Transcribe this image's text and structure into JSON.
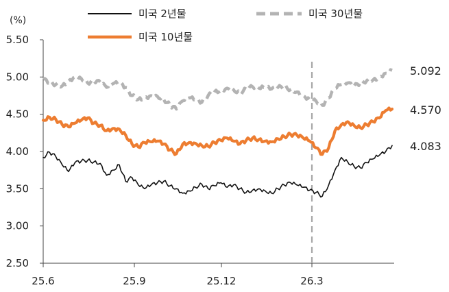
{
  "chart_data": {
    "type": "line",
    "unit_label": "(%)",
    "title": "",
    "xlabel": "",
    "ylabel": "",
    "ylim": [
      2.5,
      5.5
    ],
    "y_ticks": [
      "2.50",
      "3.00",
      "3.50",
      "4.00",
      "4.50",
      "5.00",
      "5.50"
    ],
    "x_ticks": [
      "25.6",
      "25.9",
      "25.12",
      "26.3"
    ],
    "legend_placement": "top",
    "grid": false,
    "reference_line": {
      "x_label": "26.3",
      "style": "dashed",
      "color": "#a6a6a6"
    },
    "series": [
      {
        "name": "미국 2년물",
        "color": "#111111",
        "style": "solid",
        "end_label": "4.083",
        "values": [
          3.92,
          3.99,
          3.93,
          3.82,
          3.73,
          3.85,
          3.87,
          3.88,
          3.86,
          3.84,
          3.68,
          3.75,
          3.82,
          3.6,
          3.65,
          3.55,
          3.5,
          3.55,
          3.58,
          3.6,
          3.54,
          3.5,
          3.44,
          3.47,
          3.52,
          3.56,
          3.5,
          3.54,
          3.58,
          3.52,
          3.55,
          3.5,
          3.45,
          3.48,
          3.5,
          3.47,
          3.44,
          3.5,
          3.55,
          3.58,
          3.55,
          3.52,
          3.48,
          3.45,
          3.4,
          3.55,
          3.75,
          3.92,
          3.86,
          3.8,
          3.78,
          3.85,
          3.9,
          3.95,
          4.0,
          4.08
        ]
      },
      {
        "name": "미국 30년물",
        "color": "#b3b3b3",
        "style": "dashed",
        "end_label": "5.092",
        "values": [
          4.97,
          4.93,
          4.9,
          4.88,
          4.95,
          5.0,
          4.98,
          4.92,
          4.95,
          4.93,
          4.86,
          4.91,
          4.92,
          4.86,
          4.75,
          4.7,
          4.72,
          4.75,
          4.74,
          4.7,
          4.62,
          4.57,
          4.68,
          4.72,
          4.7,
          4.66,
          4.75,
          4.8,
          4.82,
          4.85,
          4.83,
          4.78,
          4.84,
          4.87,
          4.85,
          4.86,
          4.84,
          4.86,
          4.87,
          4.83,
          4.8,
          4.75,
          4.7,
          4.68,
          4.62,
          4.72,
          4.85,
          4.9,
          4.92,
          4.88,
          4.92,
          4.95,
          4.96,
          5.0,
          5.05,
          5.09
        ]
      },
      {
        "name": "미국 10년물",
        "color": "#ed7d31",
        "style": "solid",
        "end_label": "4.570",
        "values": [
          4.42,
          4.46,
          4.43,
          4.36,
          4.33,
          4.38,
          4.42,
          4.45,
          4.38,
          4.35,
          4.28,
          4.31,
          4.3,
          4.22,
          4.1,
          4.06,
          4.12,
          4.13,
          4.14,
          4.1,
          4.02,
          3.97,
          4.1,
          4.12,
          4.11,
          4.08,
          4.07,
          4.12,
          4.15,
          4.18,
          4.14,
          4.1,
          4.15,
          4.18,
          4.16,
          4.14,
          4.13,
          4.17,
          4.2,
          4.23,
          4.22,
          4.18,
          4.14,
          4.05,
          3.96,
          4.05,
          4.28,
          4.36,
          4.4,
          4.35,
          4.32,
          4.36,
          4.4,
          4.45,
          4.55,
          4.57
        ]
      }
    ]
  }
}
